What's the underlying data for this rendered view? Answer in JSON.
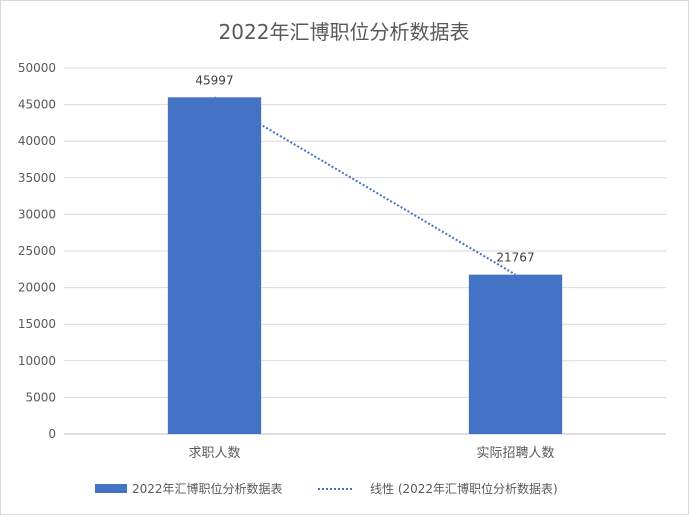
{
  "chart_data": {
    "type": "bar",
    "title": "2022年汇博职位分析数据表",
    "categories": [
      "求职人数",
      "实际招聘人数"
    ],
    "series": [
      {
        "name": "2022年汇博职位分析数据表",
        "values": [
          45997,
          21767
        ],
        "data_labels": [
          "45997",
          "21767"
        ],
        "color": "#4472c4"
      }
    ],
    "trendline": {
      "name": "线性 (2022年汇博职位分析数据表)",
      "type": "linear",
      "style": "dotted",
      "color": "#4472c4"
    },
    "ylim": [
      0,
      50000
    ],
    "y_ticks": [
      "0",
      "5000",
      "10000",
      "15000",
      "20000",
      "25000",
      "30000",
      "35000",
      "40000",
      "45000",
      "50000"
    ],
    "grid": true,
    "legend_position": "bottom",
    "xlabel": "",
    "ylabel": ""
  }
}
